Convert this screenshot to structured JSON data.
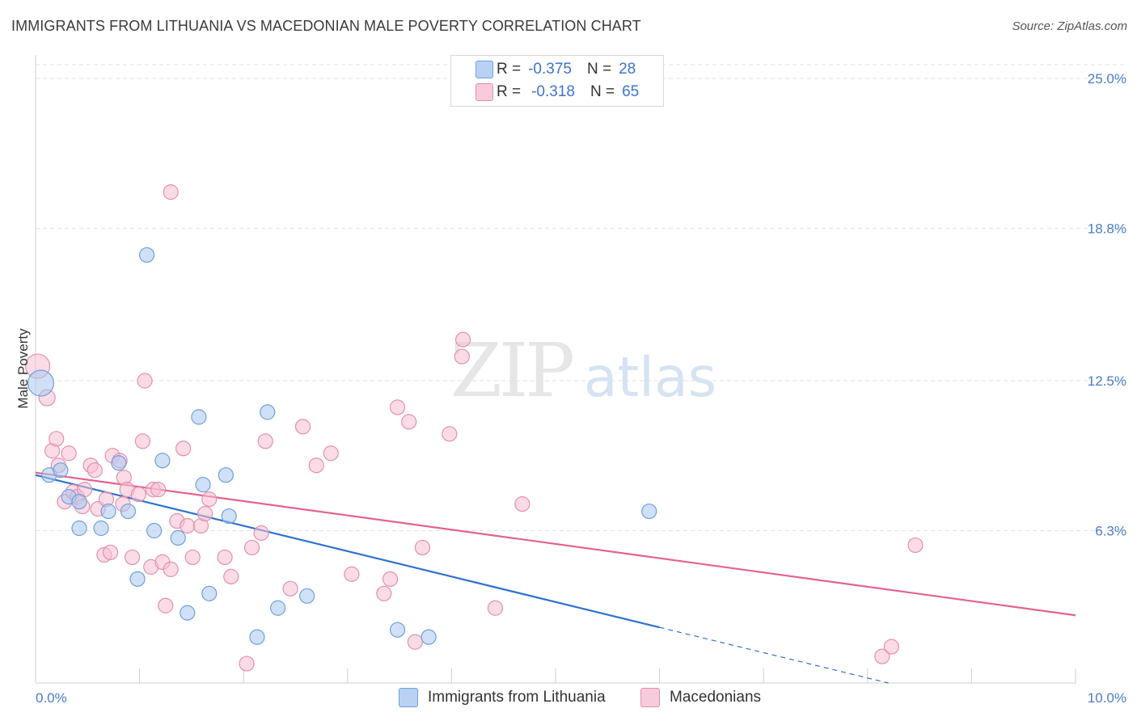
{
  "title": "IMMIGRANTS FROM LITHUANIA VS MACEDONIAN MALE POVERTY CORRELATION CHART",
  "source": "Source: ZipAtlas.com",
  "colors": {
    "blue_fill": "#aac8f0",
    "blue_stroke": "#6f9fdc",
    "blue_line": "#2f72cf",
    "pink_fill": "#f7bfd2",
    "pink_stroke": "#e48fae",
    "pink_line": "#e2638f",
    "grid": "#e3e3e3",
    "axis_text": "#4a7cc9"
  },
  "legend_top": {
    "rows": [
      {
        "r_label": "R =",
        "r_value": "-0.375",
        "n_label": "N =",
        "n_value": "28"
      },
      {
        "r_label": "R =",
        "r_value": "-0.318",
        "n_label": "N =",
        "n_value": "65"
      }
    ]
  },
  "legend_bottom": {
    "items": [
      "Immigrants from Lithuania",
      "Macedonians"
    ]
  },
  "watermark": {
    "zip": "ZIP",
    "atlas": "atlas"
  },
  "chart_data": {
    "type": "scatter",
    "title": "IMMIGRANTS FROM LITHUANIA VS MACEDONIAN MALE POVERTY CORRELATION CHART",
    "xlabel": "",
    "ylabel": "Male Poverty",
    "xlim": [
      0,
      10
    ],
    "ylim": [
      0,
      25.0
    ],
    "x_tick_labels": [
      "0.0%",
      "10.0%"
    ],
    "y_ticks": [
      6.3,
      12.5,
      18.8,
      25.0
    ],
    "y_tick_labels": [
      "6.3%",
      "12.5%",
      "18.8%",
      "25.0%"
    ],
    "grid": true,
    "series": [
      {
        "name": "Immigrants from Lithuania",
        "r": -0.375,
        "n": 28,
        "trend": {
          "x0": 0.0,
          "y0": 8.6,
          "x1": 6.0,
          "y1": 2.3,
          "dash_to_x": 8.2,
          "dash_to_y": 0.0
        },
        "points": [
          [
            0.05,
            12.4,
            16
          ],
          [
            0.13,
            8.6,
            9
          ],
          [
            0.24,
            8.8,
            9
          ],
          [
            0.32,
            7.7,
            9
          ],
          [
            0.42,
            7.5,
            9
          ],
          [
            0.42,
            6.4,
            9
          ],
          [
            0.63,
            6.4,
            9
          ],
          [
            0.7,
            7.1,
            9
          ],
          [
            0.8,
            9.1,
            9
          ],
          [
            0.89,
            7.1,
            9
          ],
          [
            1.07,
            17.7,
            9
          ],
          [
            0.98,
            4.3,
            9
          ],
          [
            1.14,
            6.3,
            9
          ],
          [
            1.22,
            9.2,
            9
          ],
          [
            1.37,
            6.0,
            9
          ],
          [
            1.46,
            2.9,
            9
          ],
          [
            1.57,
            11.0,
            9
          ],
          [
            1.61,
            8.2,
            9
          ],
          [
            1.67,
            3.7,
            9
          ],
          [
            1.83,
            8.6,
            9
          ],
          [
            1.86,
            6.9,
            9
          ],
          [
            2.13,
            1.9,
            9
          ],
          [
            2.23,
            11.2,
            9
          ],
          [
            2.33,
            3.1,
            9
          ],
          [
            2.61,
            3.6,
            9
          ],
          [
            3.48,
            2.2,
            9
          ],
          [
            3.78,
            1.9,
            9
          ],
          [
            5.9,
            7.1,
            9
          ]
        ]
      },
      {
        "name": "Macedonians",
        "r": -0.318,
        "n": 65,
        "trend": {
          "x0": 0.0,
          "y0": 8.7,
          "x1": 10.0,
          "y1": 2.8
        },
        "points": [
          [
            0.02,
            13.1,
            15
          ],
          [
            0.11,
            11.8,
            10
          ],
          [
            0.16,
            9.6,
            9
          ],
          [
            0.2,
            10.1,
            9
          ],
          [
            0.22,
            9.0,
            9
          ],
          [
            0.28,
            7.5,
            9
          ],
          [
            0.32,
            9.5,
            9
          ],
          [
            0.36,
            7.9,
            9
          ],
          [
            0.4,
            7.7,
            9
          ],
          [
            0.45,
            7.3,
            9
          ],
          [
            0.47,
            8.0,
            9
          ],
          [
            0.53,
            9.0,
            9
          ],
          [
            0.57,
            8.8,
            9
          ],
          [
            0.6,
            7.2,
            9
          ],
          [
            0.66,
            5.3,
            9
          ],
          [
            0.68,
            7.6,
            9
          ],
          [
            0.72,
            5.4,
            9
          ],
          [
            0.74,
            9.4,
            9
          ],
          [
            0.81,
            9.2,
            9
          ],
          [
            0.84,
            7.4,
            9
          ],
          [
            0.85,
            8.5,
            9
          ],
          [
            0.88,
            8.0,
            9
          ],
          [
            0.93,
            5.2,
            9
          ],
          [
            0.99,
            7.8,
            9
          ],
          [
            1.03,
            10.0,
            9
          ],
          [
            1.05,
            12.5,
            9
          ],
          [
            1.11,
            4.8,
            9
          ],
          [
            1.13,
            8.0,
            9
          ],
          [
            1.18,
            8.0,
            9
          ],
          [
            1.22,
            5.0,
            9
          ],
          [
            1.25,
            3.2,
            9
          ],
          [
            1.3,
            4.7,
            9
          ],
          [
            1.3,
            20.3,
            9
          ],
          [
            1.36,
            6.7,
            9
          ],
          [
            1.42,
            9.7,
            9
          ],
          [
            1.46,
            6.5,
            9
          ],
          [
            1.51,
            5.2,
            9
          ],
          [
            1.59,
            6.5,
            9
          ],
          [
            1.63,
            7.0,
            9
          ],
          [
            1.67,
            7.6,
            9
          ],
          [
            1.82,
            5.2,
            9
          ],
          [
            1.88,
            4.4,
            9
          ],
          [
            2.03,
            0.8,
            9
          ],
          [
            2.08,
            5.6,
            9
          ],
          [
            2.17,
            6.2,
            9
          ],
          [
            2.21,
            10.0,
            9
          ],
          [
            2.45,
            3.9,
            9
          ],
          [
            2.57,
            10.6,
            9
          ],
          [
            2.7,
            9.0,
            9
          ],
          [
            2.84,
            9.5,
            9
          ],
          [
            3.04,
            4.5,
            9
          ],
          [
            3.35,
            3.7,
            9
          ],
          [
            3.41,
            4.3,
            9
          ],
          [
            3.48,
            11.4,
            9
          ],
          [
            3.59,
            10.8,
            9
          ],
          [
            3.65,
            1.7,
            9
          ],
          [
            3.72,
            5.6,
            9
          ],
          [
            3.98,
            10.3,
            9
          ],
          [
            4.11,
            14.2,
            9
          ],
          [
            4.1,
            13.5,
            9
          ],
          [
            4.42,
            3.1,
            9
          ],
          [
            4.68,
            7.4,
            9
          ],
          [
            8.14,
            1.1,
            9
          ],
          [
            8.23,
            1.5,
            9
          ],
          [
            8.46,
            5.7,
            9
          ]
        ]
      }
    ]
  }
}
